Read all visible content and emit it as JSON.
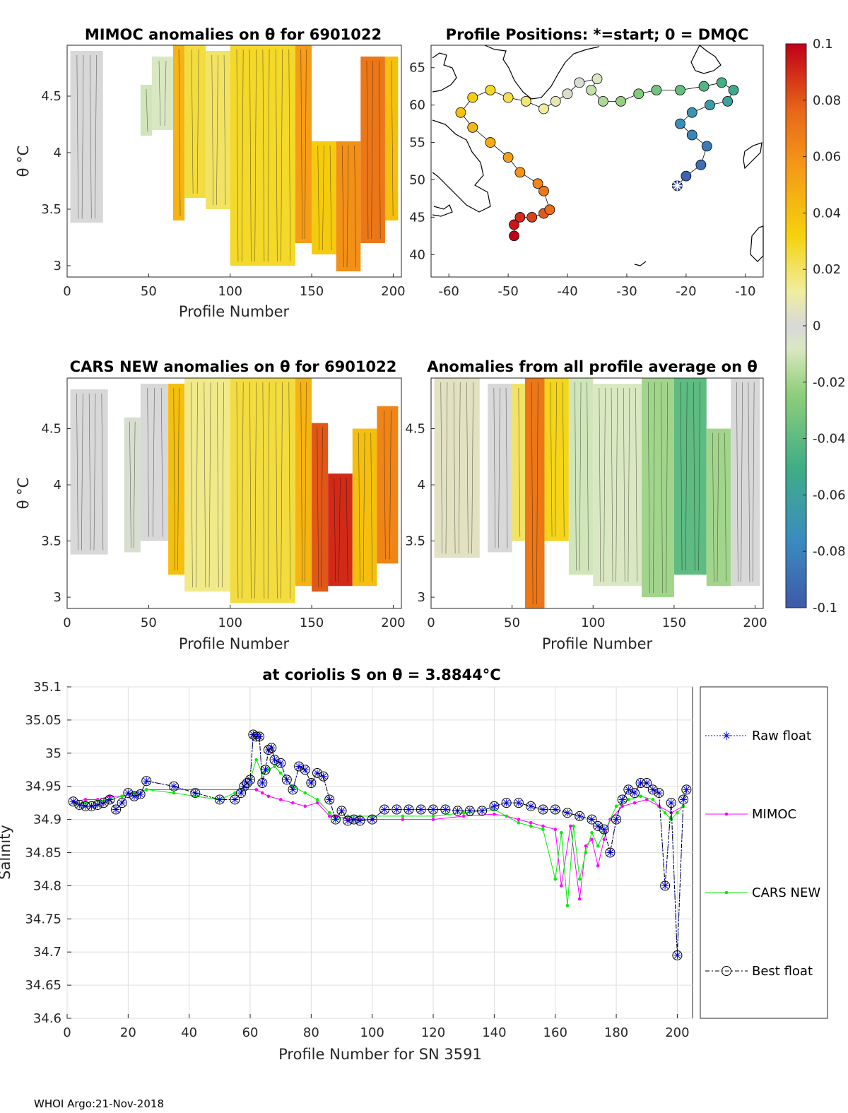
{
  "chart_data": [
    {
      "type": "heatmap",
      "title": "MIMOC anomalies on θ  for 6901022",
      "xlabel": "Profile Number",
      "ylabel": "θ °C",
      "xlim": [
        0,
        205
      ],
      "ylim": [
        2.9,
        4.95
      ],
      "xticks": [
        "0",
        "50",
        "100",
        "150",
        "200"
      ],
      "yticks": [
        "3",
        "3.5",
        "4",
        "4.5"
      ],
      "blocks": [
        {
          "x0": 2,
          "x1": 22,
          "y0": 3.38,
          "y1": 4.9,
          "v": 0.0
        },
        {
          "x0": 45,
          "x1": 52,
          "y0": 4.15,
          "y1": 4.6,
          "v": -0.01
        },
        {
          "x0": 52,
          "x1": 65,
          "y0": 4.2,
          "y1": 4.85,
          "v": -0.008
        },
        {
          "x0": 65,
          "x1": 72,
          "y0": 3.4,
          "y1": 4.95,
          "v": 0.045
        },
        {
          "x0": 72,
          "x1": 85,
          "y0": 3.6,
          "y1": 4.95,
          "v": 0.025
        },
        {
          "x0": 85,
          "x1": 100,
          "y0": 3.5,
          "y1": 4.9,
          "v": 0.02
        },
        {
          "x0": 100,
          "x1": 140,
          "y0": 3.0,
          "y1": 4.95,
          "v": 0.028
        },
        {
          "x0": 140,
          "x1": 150,
          "y0": 3.2,
          "y1": 4.95,
          "v": 0.055
        },
        {
          "x0": 150,
          "x1": 165,
          "y0": 3.1,
          "y1": 4.1,
          "v": 0.035
        },
        {
          "x0": 165,
          "x1": 180,
          "y0": 2.95,
          "y1": 4.1,
          "v": 0.06
        },
        {
          "x0": 180,
          "x1": 195,
          "y0": 3.2,
          "y1": 4.85,
          "v": 0.07
        },
        {
          "x0": 195,
          "x1": 203,
          "y0": 3.4,
          "y1": 4.85,
          "v": 0.04
        }
      ]
    },
    {
      "type": "scatter",
      "title": "Profile Positions: *=start; 0 = DMQC",
      "xlabel": "",
      "ylabel": "",
      "xlim": [
        -63,
        -7
      ],
      "ylim": [
        37,
        68
      ],
      "xticks": [
        "-60",
        "-50",
        "-40",
        "-30",
        "-20",
        "-10"
      ],
      "yticks": [
        "40",
        "45",
        "50",
        "55",
        "60",
        "65"
      ],
      "track": [
        {
          "lon": -21.5,
          "lat": 49.2
        },
        {
          "lon": -20,
          "lat": 50.5
        },
        {
          "lon": -17.5,
          "lat": 52
        },
        {
          "lon": -16.5,
          "lat": 54.5
        },
        {
          "lon": -19,
          "lat": 56
        },
        {
          "lon": -21,
          "lat": 57.5
        },
        {
          "lon": -19,
          "lat": 59
        },
        {
          "lon": -16,
          "lat": 60
        },
        {
          "lon": -13,
          "lat": 60.5
        },
        {
          "lon": -12,
          "lat": 62
        },
        {
          "lon": -14,
          "lat": 63
        },
        {
          "lon": -17,
          "lat": 62.5
        },
        {
          "lon": -21,
          "lat": 62
        },
        {
          "lon": -25,
          "lat": 62
        },
        {
          "lon": -28,
          "lat": 61.5
        },
        {
          "lon": -31,
          "lat": 60.5
        },
        {
          "lon": -34,
          "lat": 60.5
        },
        {
          "lon": -36,
          "lat": 62
        },
        {
          "lon": -35,
          "lat": 63.5
        },
        {
          "lon": -38,
          "lat": 63
        },
        {
          "lon": -40,
          "lat": 61.5
        },
        {
          "lon": -42,
          "lat": 60.5
        },
        {
          "lon": -44,
          "lat": 59.5
        },
        {
          "lon": -47,
          "lat": 60.5
        },
        {
          "lon": -50,
          "lat": 61
        },
        {
          "lon": -53,
          "lat": 62
        },
        {
          "lon": -56,
          "lat": 61
        },
        {
          "lon": -58,
          "lat": 59
        },
        {
          "lon": -56,
          "lat": 57
        },
        {
          "lon": -53,
          "lat": 55
        },
        {
          "lon": -50,
          "lat": 53
        },
        {
          "lon": -48,
          "lat": 51
        },
        {
          "lon": -45,
          "lat": 49.5
        },
        {
          "lon": -44,
          "lat": 48.5
        },
        {
          "lon": -43,
          "lat": 46
        },
        {
          "lon": -44,
          "lat": 45.5
        },
        {
          "lon": -46,
          "lat": 45
        },
        {
          "lon": -48,
          "lat": 45
        },
        {
          "lon": -49,
          "lat": 44
        },
        {
          "lon": -49,
          "lat": 42.5
        }
      ],
      "start": {
        "lon": -21.5,
        "lat": 49.2
      }
    },
    {
      "type": "heatmap",
      "title": "CARS NEW anomalies on θ for 6901022",
      "xlabel": "Profile Number",
      "ylabel": "θ °C",
      "xlim": [
        0,
        205
      ],
      "ylim": [
        2.9,
        4.95
      ],
      "xticks": [
        "0",
        "50",
        "100",
        "150",
        "200"
      ],
      "yticks": [
        "3",
        "3.5",
        "4",
        "4.5"
      ],
      "blocks": [
        {
          "x0": 2,
          "x1": 25,
          "y0": 3.38,
          "y1": 4.85,
          "v": 0.0
        },
        {
          "x0": 35,
          "x1": 45,
          "y0": 3.4,
          "y1": 4.6,
          "v": -0.003
        },
        {
          "x0": 45,
          "x1": 62,
          "y0": 3.5,
          "y1": 4.9,
          "v": 0.0
        },
        {
          "x0": 62,
          "x1": 72,
          "y0": 3.2,
          "y1": 4.9,
          "v": 0.04
        },
        {
          "x0": 72,
          "x1": 100,
          "y0": 3.05,
          "y1": 4.95,
          "v": 0.015
        },
        {
          "x0": 100,
          "x1": 140,
          "y0": 2.95,
          "y1": 4.95,
          "v": 0.025
        },
        {
          "x0": 140,
          "x1": 150,
          "y0": 3.1,
          "y1": 4.95,
          "v": 0.045
        },
        {
          "x0": 150,
          "x1": 160,
          "y0": 3.05,
          "y1": 4.55,
          "v": 0.08
        },
        {
          "x0": 160,
          "x1": 175,
          "y0": 3.1,
          "y1": 4.1,
          "v": 0.09
        },
        {
          "x0": 175,
          "x1": 190,
          "y0": 3.1,
          "y1": 4.5,
          "v": 0.04
        },
        {
          "x0": 190,
          "x1": 203,
          "y0": 3.3,
          "y1": 4.7,
          "v": 0.065
        }
      ]
    },
    {
      "type": "heatmap",
      "title": "Anomalies from all profile average on θ",
      "xlabel": "Profile Number",
      "ylabel": "",
      "xlim": [
        0,
        205
      ],
      "ylim": [
        2.9,
        4.95
      ],
      "xticks": [
        "0",
        "50",
        "100",
        "150",
        "200"
      ],
      "yticks": [
        "3",
        "3.5",
        "4",
        "4.5"
      ],
      "blocks": [
        {
          "x0": 2,
          "x1": 30,
          "y0": 3.35,
          "y1": 4.95,
          "v": 0.005
        },
        {
          "x0": 35,
          "x1": 50,
          "y0": 3.4,
          "y1": 4.9,
          "v": 0.0
        },
        {
          "x0": 50,
          "x1": 58,
          "y0": 3.5,
          "y1": 4.9,
          "v": 0.02
        },
        {
          "x0": 58,
          "x1": 70,
          "y0": 2.9,
          "y1": 4.95,
          "v": 0.07
        },
        {
          "x0": 70,
          "x1": 85,
          "y0": 3.5,
          "y1": 4.95,
          "v": 0.03
        },
        {
          "x0": 85,
          "x1": 100,
          "y0": 3.2,
          "y1": 4.95,
          "v": -0.01
        },
        {
          "x0": 100,
          "x1": 130,
          "y0": 3.1,
          "y1": 4.9,
          "v": -0.008
        },
        {
          "x0": 130,
          "x1": 150,
          "y0": 3.0,
          "y1": 4.95,
          "v": -0.02
        },
        {
          "x0": 150,
          "x1": 170,
          "y0": 3.2,
          "y1": 4.95,
          "v": -0.04
        },
        {
          "x0": 170,
          "x1": 185,
          "y0": 3.1,
          "y1": 4.5,
          "v": -0.02
        },
        {
          "x0": 185,
          "x1": 203,
          "y0": 3.1,
          "y1": 4.95,
          "v": 0.0
        }
      ]
    },
    {
      "type": "colorbar",
      "range": [
        -0.1,
        0.1
      ],
      "ticks": [
        "0.1",
        "0.08",
        "0.06",
        "0.04",
        "0.02",
        "0",
        "-0.02",
        "-0.04",
        "-0.06",
        "-0.08",
        "-0.1"
      ]
    },
    {
      "type": "line",
      "title": "at coriolis S on θ = 3.8844°C",
      "xlabel": "Profile Number for SN 3591",
      "ylabel": "Salinity",
      "xlim": [
        0,
        205
      ],
      "ylim": [
        34.6,
        35.1
      ],
      "grid": true,
      "legend_position": "right",
      "xticks": [
        "0",
        "20",
        "40",
        "60",
        "80",
        "100",
        "120",
        "140",
        "160",
        "180",
        "200"
      ],
      "yticks": [
        "35.1",
        "35.05",
        "35",
        "34.95",
        "34.9",
        "34.85",
        "34.8",
        "34.75",
        "34.7",
        "34.65",
        "34.6"
      ],
      "series": [
        {
          "name": "Raw float",
          "x": [
            2,
            4,
            6,
            8,
            10,
            12,
            14,
            16,
            18,
            20,
            22,
            24,
            26,
            35,
            42,
            50,
            55,
            57,
            58,
            59,
            60,
            61,
            62,
            63,
            64,
            65,
            66,
            67,
            68,
            70,
            72,
            74,
            76,
            78,
            80,
            82,
            84,
            86,
            88,
            90,
            92,
            94,
            96,
            100,
            104,
            108,
            112,
            116,
            120,
            124,
            128,
            132,
            136,
            140,
            144,
            148,
            152,
            156,
            160,
            164,
            168,
            172,
            174,
            176,
            178,
            180,
            182,
            184,
            186,
            188,
            190,
            192,
            194,
            196,
            198,
            200,
            202,
            203
          ],
          "y": [
            34.927,
            34.922,
            34.92,
            34.92,
            34.922,
            34.925,
            34.93,
            34.915,
            34.925,
            34.94,
            34.935,
            34.938,
            34.958,
            34.95,
            34.94,
            34.93,
            34.93,
            34.94,
            34.95,
            34.955,
            34.96,
            35.028,
            35.025,
            35.025,
            34.955,
            34.975,
            35.005,
            35.008,
            34.99,
            34.985,
            34.96,
            34.945,
            34.98,
            34.975,
            34.955,
            34.97,
            34.965,
            34.93,
            34.9,
            34.913,
            34.898,
            34.9,
            34.898,
            34.9,
            34.915,
            34.915,
            34.915,
            34.915,
            34.915,
            34.915,
            34.913,
            34.913,
            34.913,
            34.92,
            34.925,
            34.925,
            34.92,
            34.915,
            34.915,
            34.91,
            34.905,
            34.9,
            34.89,
            34.885,
            34.85,
            34.9,
            34.93,
            34.945,
            34.94,
            34.955,
            34.955,
            34.945,
            34.94,
            34.8,
            34.925,
            34.695,
            34.93,
            34.945
          ]
        },
        {
          "name": "MIMOC",
          "x": [
            2,
            6,
            10,
            14,
            18,
            22,
            26,
            62,
            64,
            66,
            70,
            74,
            78,
            82,
            86,
            88,
            92,
            96,
            100,
            110,
            120,
            130,
            140,
            144,
            148,
            152,
            156,
            160,
            162,
            165,
            168,
            170,
            172,
            174,
            176,
            178,
            182,
            186,
            190,
            194,
            198,
            202
          ],
          "y": [
            34.927,
            34.93,
            34.93,
            34.935,
            34.935,
            34.94,
            34.945,
            34.945,
            34.94,
            34.935,
            34.93,
            34.925,
            34.92,
            34.925,
            34.905,
            34.905,
            34.9,
            34.9,
            34.9,
            34.9,
            34.9,
            34.905,
            34.908,
            34.905,
            34.9,
            34.895,
            34.89,
            34.885,
            34.8,
            34.89,
            34.78,
            34.86,
            34.87,
            34.83,
            34.87,
            34.9,
            34.92,
            34.925,
            34.93,
            34.92,
            34.91,
            34.92
          ]
        },
        {
          "name": "CARS NEW",
          "x": [
            2,
            6,
            10,
            14,
            18,
            22,
            26,
            35,
            42,
            50,
            55,
            58,
            60,
            62,
            64,
            66,
            68,
            70,
            74,
            78,
            82,
            86,
            88,
            92,
            96,
            100,
            110,
            120,
            130,
            140,
            144,
            148,
            152,
            156,
            160,
            162,
            164,
            166,
            168,
            170,
            172,
            174,
            176,
            180,
            184,
            188,
            192,
            196,
            198,
            200,
            202
          ],
          "y": [
            34.925,
            34.925,
            34.928,
            34.93,
            34.935,
            34.94,
            34.945,
            34.94,
            34.935,
            34.93,
            34.94,
            34.95,
            34.96,
            34.99,
            34.97,
            34.975,
            34.98,
            34.97,
            34.95,
            34.94,
            34.93,
            34.91,
            34.9,
            34.905,
            34.905,
            34.905,
            34.905,
            34.905,
            34.91,
            34.915,
            34.905,
            34.895,
            34.89,
            34.885,
            34.81,
            34.88,
            34.77,
            34.89,
            34.81,
            34.85,
            34.88,
            34.86,
            34.88,
            34.92,
            34.93,
            34.935,
            34.93,
            34.91,
            34.9,
            34.91,
            34.92
          ]
        },
        {
          "name": "Best float",
          "x": [
            2,
            4,
            6,
            8,
            10,
            12,
            14,
            16,
            18,
            20,
            22,
            24,
            26,
            35,
            42,
            50,
            55,
            57,
            58,
            59,
            60,
            61,
            62,
            63,
            64,
            65,
            66,
            67,
            68,
            70,
            72,
            74,
            76,
            78,
            80,
            82,
            84,
            86,
            88,
            90,
            92,
            94,
            96,
            100,
            104,
            108,
            112,
            116,
            120,
            124,
            128,
            132,
            136,
            140,
            144,
            148,
            152,
            156,
            160,
            164,
            168,
            172,
            174,
            176,
            178,
            180,
            182,
            184,
            186,
            188,
            190,
            192,
            194,
            196,
            198,
            200,
            202,
            203
          ],
          "y": [
            34.927,
            34.922,
            34.92,
            34.92,
            34.922,
            34.925,
            34.93,
            34.915,
            34.925,
            34.94,
            34.935,
            34.938,
            34.958,
            34.95,
            34.94,
            34.93,
            34.93,
            34.94,
            34.95,
            34.955,
            34.96,
            35.028,
            35.025,
            35.025,
            34.955,
            34.975,
            35.005,
            35.008,
            34.99,
            34.985,
            34.96,
            34.945,
            34.98,
            34.975,
            34.955,
            34.97,
            34.965,
            34.93,
            34.9,
            34.913,
            34.898,
            34.9,
            34.898,
            34.9,
            34.915,
            34.915,
            34.915,
            34.915,
            34.915,
            34.915,
            34.913,
            34.913,
            34.913,
            34.92,
            34.925,
            34.925,
            34.92,
            34.915,
            34.915,
            34.91,
            34.905,
            34.9,
            34.89,
            34.885,
            34.85,
            34.9,
            34.93,
            34.945,
            34.94,
            34.955,
            34.955,
            34.945,
            34.94,
            34.8,
            34.925,
            34.695,
            34.93,
            34.945
          ]
        }
      ]
    }
  ],
  "colors": {
    "raw_float": "#0000ff",
    "mimoc": "#ff00ff",
    "cars_new": "#00ee00",
    "best_float": "#000000"
  },
  "footer": "WHOI Argo:21-Nov-2018"
}
